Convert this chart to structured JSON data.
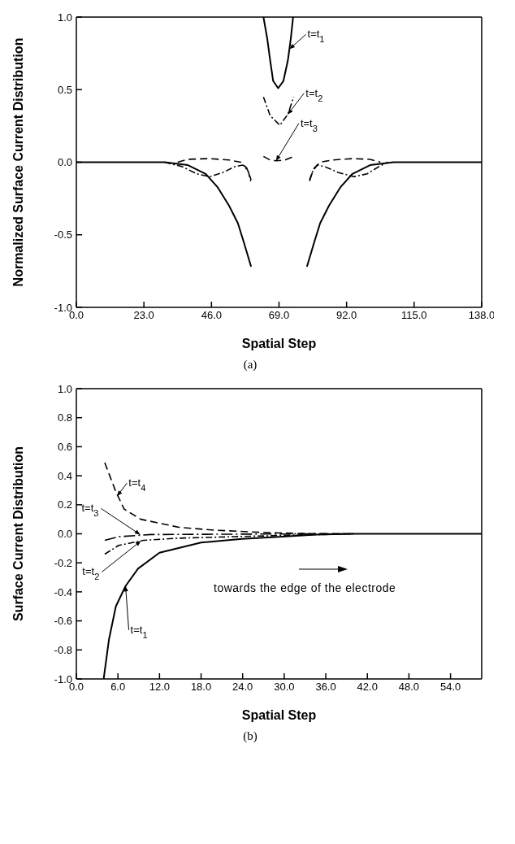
{
  "chart_data": [
    {
      "type": "line",
      "xlabel": "Spatial Step",
      "ylabel": "Normalized Surface Current Distribution",
      "xlim": [
        0,
        138
      ],
      "ylim": [
        -1,
        1
      ],
      "xticks": [
        {
          "value": 0,
          "label": "0.0"
        },
        {
          "value": 23,
          "label": "23.0"
        },
        {
          "value": 46,
          "label": "46.0"
        },
        {
          "value": 69,
          "label": "69.0"
        },
        {
          "value": 92,
          "label": "92.0"
        },
        {
          "value": 115,
          "label": "115.0"
        },
        {
          "value": 138,
          "label": "138.0"
        }
      ],
      "yticks": [
        {
          "value": -1,
          "label": "-1.0"
        },
        {
          "value": -0.5,
          "label": "-0.5"
        },
        {
          "value": 0,
          "label": "0.0"
        },
        {
          "value": 0.5,
          "label": "0.5"
        },
        {
          "value": 1,
          "label": "1.0"
        }
      ],
      "grid": false,
      "marker": "none",
      "series": [
        {
          "color": "#000000",
          "line_style": "solid",
          "x": [
            0,
            30,
            38,
            44,
            48,
            52,
            55,
            57,
            59.5,
            61.6,
            63.7,
            65,
            66,
            67,
            68.7,
            70.5,
            72,
            73,
            73.8,
            76.5,
            78.5,
            81,
            83,
            86,
            90,
            94,
            100,
            108,
            138
          ],
          "values": [
            0,
            0,
            -0.02,
            -0.08,
            -0.17,
            -0.3,
            -0.42,
            -0.55,
            -0.72,
            null,
            1.0,
            0.85,
            0.7,
            0.56,
            0.51,
            0.56,
            0.7,
            0.85,
            1.0,
            null,
            -0.72,
            -0.55,
            -0.42,
            -0.3,
            -0.17,
            -0.08,
            -0.02,
            0,
            0
          ]
        },
        {
          "color": "#000000",
          "line_style": "dashdot",
          "x": [
            30,
            36,
            41,
            45.4,
            50,
            54,
            56.7,
            58.5,
            59.5,
            61.6,
            63.7,
            66,
            69.3,
            72,
            74,
            76.5,
            79.4,
            80.5,
            82,
            84.5,
            89,
            94.5,
            99,
            103,
            106
          ],
          "values": [
            0,
            -0.03,
            -0.08,
            -0.1,
            -0.07,
            -0.03,
            -0.02,
            -0.06,
            -0.14,
            null,
            0.45,
            0.32,
            0.255,
            0.33,
            0.45,
            null,
            -0.13,
            -0.06,
            -0.02,
            -0.03,
            -0.07,
            -0.1,
            -0.08,
            -0.03,
            0
          ]
        },
        {
          "color": "#000000",
          "line_style": "dashed",
          "x": [
            34.5,
            38,
            45,
            52,
            56,
            58,
            59.5,
            61.6,
            63.7,
            66,
            68,
            71,
            74,
            76.5,
            79.4,
            81,
            83,
            87,
            94,
            100,
            103.5
          ],
          "values": [
            0,
            0.02,
            0.025,
            0.015,
            0,
            -0.04,
            -0.12,
            null,
            0.04,
            0.015,
            0.01,
            0.015,
            0.04,
            null,
            -0.12,
            -0.04,
            0,
            0.015,
            0.025,
            0.02,
            0
          ]
        }
      ],
      "annotations": [
        {
          "text": "t=t$_{1}$",
          "x": 72.6,
          "y": 0.78
        },
        {
          "text": "t=t$_{2}$",
          "x": 72,
          "y": 0.33
        },
        {
          "text": "t=t$_{3}$",
          "x": 68,
          "y": 0.01
        },
        "(a)"
      ]
    },
    {
      "type": "line",
      "xlabel": "Spatial Step",
      "ylabel": "Surface Current Distribution",
      "xlim": [
        0,
        58.5
      ],
      "ylim": [
        -1,
        1
      ],
      "xticks": [
        {
          "value": 0,
          "label": "0.0"
        },
        {
          "value": 6,
          "label": "6.0"
        },
        {
          "value": 12,
          "label": "12.0"
        },
        {
          "value": 18,
          "label": "18.0"
        },
        {
          "value": 24,
          "label": "24.0"
        },
        {
          "value": 30,
          "label": "30.0"
        },
        {
          "value": 36,
          "label": "36.0"
        },
        {
          "value": 42,
          "label": "42.0"
        },
        {
          "value": 48,
          "label": "48.0"
        },
        {
          "value": 54,
          "label": "54.0"
        }
      ],
      "yticks": [
        {
          "value": -1,
          "label": "-1.0"
        },
        {
          "value": -0.8,
          "label": "-0.8"
        },
        {
          "value": -0.6,
          "label": "-0.6"
        },
        {
          "value": -0.4,
          "label": "-0.4"
        },
        {
          "value": -0.2,
          "label": "-0.2"
        },
        {
          "value": 0,
          "label": "0.0"
        },
        {
          "value": 0.2,
          "label": "0.2"
        },
        {
          "value": 0.4,
          "label": "0.4"
        },
        {
          "value": 0.6,
          "label": "0.6"
        },
        {
          "value": 0.8,
          "label": "0.8"
        },
        {
          "value": 1,
          "label": "1.0"
        }
      ],
      "grid": false,
      "marker": "none",
      "series": [
        {
          "color": "#000000",
          "line_style": "solid",
          "x": [
            3.94,
            4.7,
            5.7,
            7.1,
            8.9,
            12,
            18,
            23.9,
            29.8,
            34.5,
            40,
            58.5
          ],
          "values": [
            -1.0,
            -0.73,
            -0.5,
            -0.36,
            -0.24,
            -0.13,
            -0.06,
            -0.035,
            -0.02,
            -0.005,
            0,
            0
          ]
        },
        {
          "color": "#000000",
          "line_style": "dashdot",
          "x": [
            4.1,
            6.1,
            9.7,
            14.8,
            22.7,
            30.6,
            40
          ],
          "values": [
            -0.14,
            -0.08,
            -0.045,
            -0.03,
            -0.02,
            -0.01,
            0
          ]
        },
        {
          "color": "#000000",
          "line_style": "longdashdot",
          "x": [
            4.1,
            6.1,
            10.8,
            20,
            30,
            40
          ],
          "values": [
            -0.045,
            -0.02,
            -0.005,
            -0.003,
            -0.001,
            0
          ]
        },
        {
          "color": "#000000",
          "line_style": "dashed",
          "x": [
            4.1,
            5.7,
            6.9,
            9.3,
            14.8,
            19.9,
            26.6,
            32.5,
            40
          ],
          "values": [
            0.49,
            0.29,
            0.17,
            0.1,
            0.045,
            0.025,
            0.01,
            0.002,
            0
          ]
        }
      ],
      "annotations": [
        {
          "text": "t=t$_{4}$",
          "x": 5.9,
          "y": 0.26
        },
        {
          "text": "t=t$_{3}$",
          "x": 9.2,
          "y": -0.005
        },
        {
          "text": "t=t$_{2}$",
          "x": 9.3,
          "y": -0.05
        },
        {
          "text": "t=t$_{1}$",
          "x": 7.1,
          "y": -0.36
        },
        "towards the edge of the electrode",
        "(b)"
      ]
    }
  ]
}
